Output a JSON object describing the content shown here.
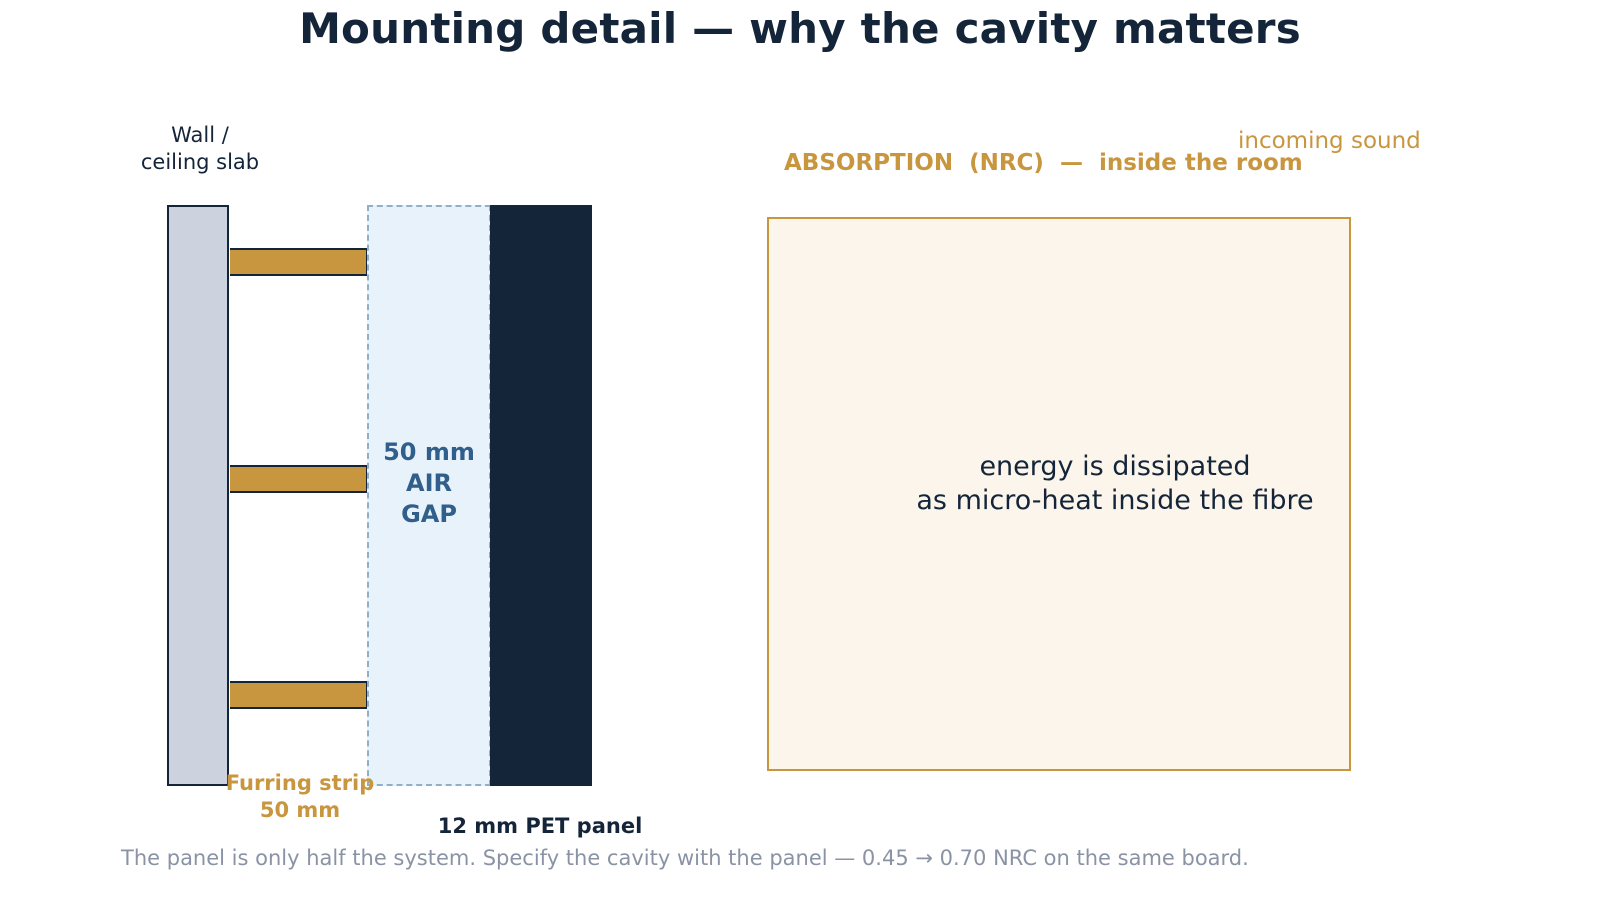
{
  "title": "Mounting detail — why the cavity matters",
  "diagram": {
    "wall_label": [
      "Wall /",
      "ceiling slab"
    ],
    "air_gap_label": [
      "50 mm",
      "AIR",
      "GAP"
    ],
    "furring_label": [
      "Furring strip",
      "50 mm"
    ],
    "panel_label": "12 mm PET panel",
    "absorption_label": "ABSORPTION  (NRC)  —  inside the room",
    "incoming_label": "incoming sound",
    "room_text": [
      "energy is dissipated",
      "as micro-heat inside the fibre"
    ]
  },
  "caption": "The panel is only half the system. Specify the cavity with the panel — 0.45 → 0.70 NRC on the same board.",
  "colors": {
    "navy": "#14253a",
    "gold": "#c8963e",
    "wall": "#cdd3de",
    "air_gap": "#e8f2fb",
    "air_gap_text": "#2f5f8a",
    "room_fill": "#fcf5eb",
    "caption": "#8a93a5"
  }
}
